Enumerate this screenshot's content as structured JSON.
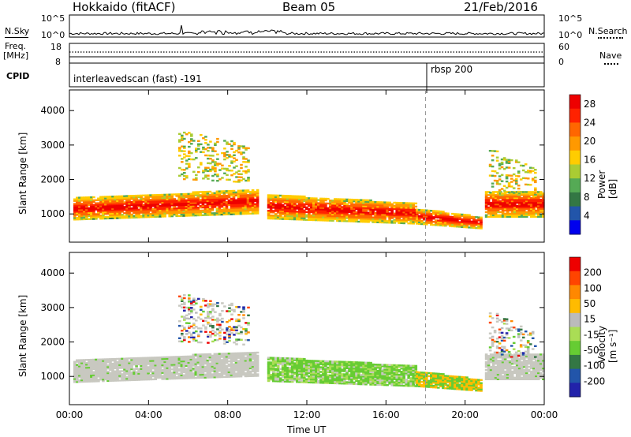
{
  "header": {
    "title": "Hokkaido (fitACF)",
    "beam": "Beam 05",
    "date": "21/Feb/2016"
  },
  "strip": {
    "nsky_label": "N.Sky",
    "nsearch_label": "N.Search",
    "nsky_ticks": [
      "10^5",
      "10^0"
    ],
    "nsearch_ticks": [
      "10^5",
      "10^0"
    ],
    "freq_label_1": "Freq.",
    "freq_label_2": "[MHz]",
    "freq_ticks": [
      "18",
      "8"
    ],
    "nave_label": "Nave",
    "nave_ticks": [
      "60",
      "0"
    ],
    "cpid_label": "CPID",
    "cpid_entries": [
      "interleavedscan (fast) -191",
      "rbsp 200"
    ]
  },
  "colors": {
    "power_scale": [
      "#0000ee",
      "#2255aa",
      "#337744",
      "#55aa55",
      "#aacc33",
      "#ffcc00",
      "#ff9900",
      "#ff6600",
      "#ff2200",
      "#ee0000"
    ],
    "velocity_scale": [
      "#2222aa",
      "#2255aa",
      "#337744",
      "#66cc33",
      "#aadd55",
      "#bbbbbb",
      "#ffbb00",
      "#ff8800",
      "#ff4400",
      "#ee0000"
    ],
    "gray": "#c8c8c0"
  },
  "chart_data": [
    {
      "type": "heatmap",
      "title": "",
      "xlabel": "",
      "ylabel": "Slant Range [km]",
      "x_ticks": [
        "00:00",
        "04:00",
        "08:00",
        "12:00",
        "16:00",
        "20:00",
        "00:00"
      ],
      "y_ticks": [
        "1000",
        "2000",
        "3000",
        "4000"
      ],
      "ylim": [
        180,
        4600
      ],
      "xlim_hours": [
        0,
        24
      ],
      "colorbar": {
        "label": "Power [dB]",
        "ticks": [
          "4",
          "8",
          "12",
          "16",
          "20",
          "24",
          "28"
        ],
        "range": [
          0,
          30
        ]
      },
      "marker_hour": 18
    },
    {
      "type": "heatmap",
      "title": "",
      "xlabel": "Time UT",
      "ylabel": "Slant Range [km]",
      "x_ticks": [
        "00:00",
        "04:00",
        "08:00",
        "12:00",
        "16:00",
        "20:00",
        "00:00"
      ],
      "y_ticks": [
        "1000",
        "2000",
        "3000",
        "4000"
      ],
      "ylim": [
        180,
        4600
      ],
      "xlim_hours": [
        0,
        24
      ],
      "colorbar": {
        "label": "Velocity [m s⁻¹]",
        "ticks": [
          "200",
          "100",
          "50",
          "15",
          "-15",
          "-50",
          "-100",
          "-200"
        ],
        "range": [
          -250,
          250
        ]
      },
      "marker_hour": 18
    }
  ]
}
